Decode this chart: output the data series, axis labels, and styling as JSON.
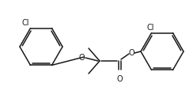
{
  "background": "#ffffff",
  "line_color": "#1a1a1a",
  "text_color": "#1a1a1a",
  "line_width": 1.1,
  "font_size": 7.0,
  "figsize": [
    2.44,
    1.39
  ],
  "dpi": 100,
  "xlim": [
    0,
    244
  ],
  "ylim": [
    0,
    139
  ]
}
